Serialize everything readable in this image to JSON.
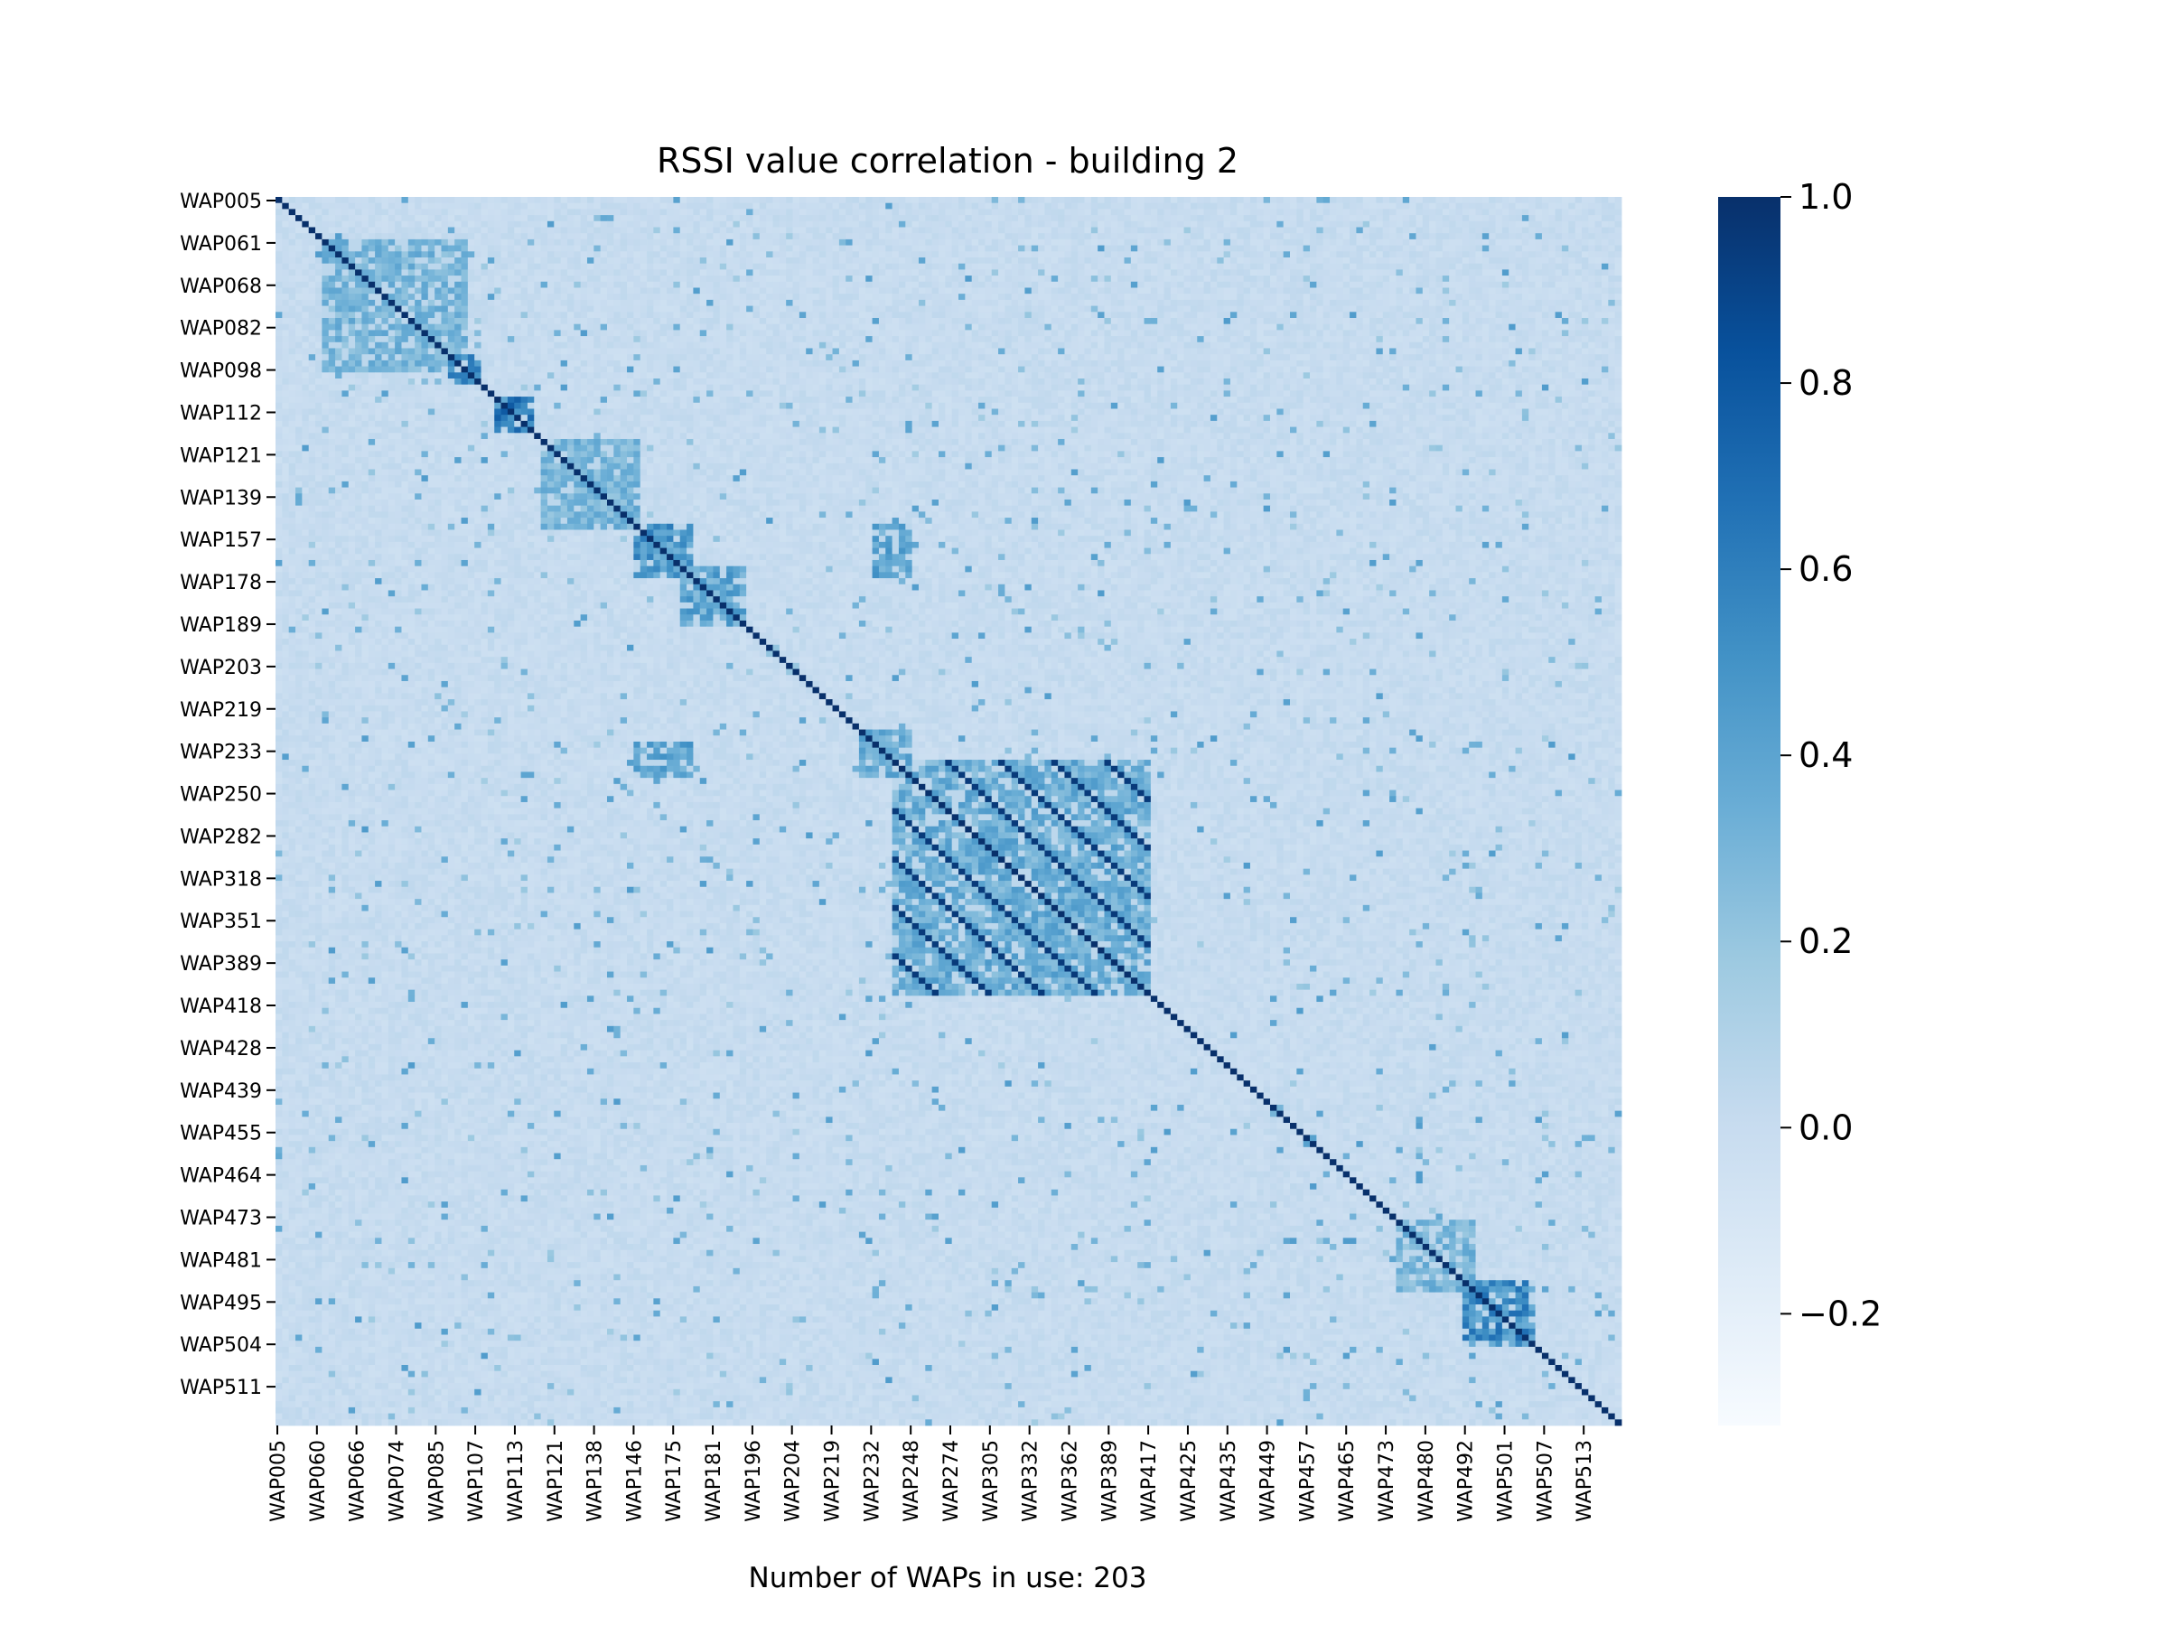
{
  "chart_data": {
    "type": "heatmap",
    "title": "RSSI value correlation - building 2",
    "xlabel": "Number of WAPs in use: 203",
    "ylabel": "",
    "n_waps": 203,
    "x_tick_labels": [
      "WAP005",
      "WAP060",
      "WAP066",
      "WAP074",
      "WAP085",
      "WAP107",
      "WAP113",
      "WAP121",
      "WAP138",
      "WAP146",
      "WAP175",
      "WAP181",
      "WAP196",
      "WAP204",
      "WAP219",
      "WAP232",
      "WAP248",
      "WAP274",
      "WAP305",
      "WAP332",
      "WAP362",
      "WAP389",
      "WAP417",
      "WAP425",
      "WAP435",
      "WAP449",
      "WAP457",
      "WAP465",
      "WAP473",
      "WAP480",
      "WAP492",
      "WAP501",
      "WAP507",
      "WAP513"
    ],
    "y_tick_labels": [
      "WAP005",
      "WAP061",
      "WAP068",
      "WAP082",
      "WAP098",
      "WAP112",
      "WAP121",
      "WAP139",
      "WAP157",
      "WAP178",
      "WAP189",
      "WAP203",
      "WAP219",
      "WAP233",
      "WAP250",
      "WAP282",
      "WAP318",
      "WAP351",
      "WAP389",
      "WAP418",
      "WAP428",
      "WAP439",
      "WAP455",
      "WAP464",
      "WAP473",
      "WAP481",
      "WAP495",
      "WAP504",
      "WAP511"
    ],
    "colorbar": {
      "cmap": "Blues",
      "vmin": -0.32,
      "vmax": 1.0,
      "ticks": [
        1.0,
        0.8,
        0.6,
        0.4,
        0.2,
        0.0,
        -0.2
      ],
      "tick_labels": [
        "1.0",
        "0.8",
        "0.6",
        "0.4",
        "0.2",
        "0.0",
        "−0.2"
      ]
    },
    "diagonal_value": 1.0,
    "background_value": 0.0,
    "correlation_blocks": [
      {
        "rows": [
          7,
          28
        ],
        "cols": [
          7,
          28
        ],
        "value": 0.35
      },
      {
        "rows": [
          26,
          30
        ],
        "cols": [
          26,
          30
        ],
        "value": 0.6
      },
      {
        "rows": [
          33,
          38
        ],
        "cols": [
          33,
          38
        ],
        "value": 0.7
      },
      {
        "rows": [
          40,
          54
        ],
        "cols": [
          40,
          54
        ],
        "value": 0.35
      },
      {
        "rows": [
          54,
          62
        ],
        "cols": [
          54,
          62
        ],
        "value": 0.55
      },
      {
        "rows": [
          54,
          62
        ],
        "cols": [
          90,
          95
        ],
        "value": 0.45
      },
      {
        "rows": [
          61,
          70
        ],
        "cols": [
          61,
          70
        ],
        "value": 0.45
      },
      {
        "rows": [
          93,
          131
        ],
        "cols": [
          93,
          131
        ],
        "value": 0.4
      },
      {
        "rows": [
          88,
          95
        ],
        "cols": [
          88,
          95
        ],
        "value": 0.4
      },
      {
        "rows": [
          169,
          180
        ],
        "cols": [
          169,
          180
        ],
        "value": 0.35
      },
      {
        "rows": [
          179,
          189
        ],
        "cols": [
          179,
          189
        ],
        "value": 0.6
      }
    ]
  }
}
